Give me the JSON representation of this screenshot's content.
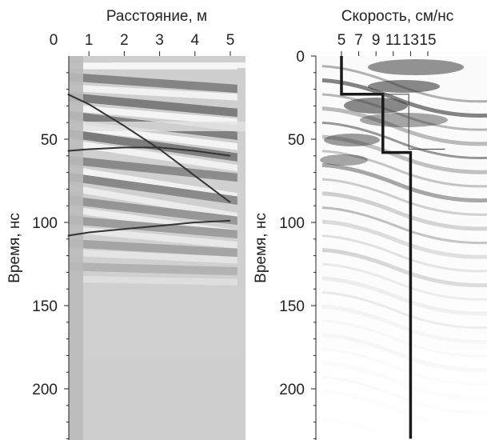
{
  "chart_data": [
    {
      "type": "line",
      "title": "Расстояние, м",
      "ylabel": "Время, нс",
      "x_ticks": [
        "0",
        "1",
        "2",
        "3",
        "4",
        "5"
      ],
      "y_ticks": [
        "50",
        "100",
        "150",
        "200"
      ],
      "xlim": [
        0,
        5
      ],
      "ylim": [
        0,
        230
      ],
      "x_axis_position": "top",
      "y_axis_inverted": true,
      "background": "radargram (grayscale seismic-style traces)",
      "series": [
        {
          "x": [
            0.4,
            1.0,
            2.0,
            3.0,
            4.0,
            5.0
          ],
          "y": [
            23,
            29,
            42,
            56,
            72,
            88
          ]
        },
        {
          "x": [
            0.4,
            1.0,
            2.0,
            3.0,
            4.0,
            5.0
          ],
          "y": [
            57,
            56,
            55,
            55,
            57,
            60
          ]
        },
        {
          "x": [
            0.4,
            1.0,
            2.0,
            3.0,
            4.0,
            5.0
          ],
          "y": [
            108,
            106,
            104,
            102,
            100,
            99
          ]
        }
      ],
      "colors": {
        "curves": "#333333",
        "traces_dark": "#777777",
        "traces_light": "#f4f4f4"
      }
    },
    {
      "type": "line",
      "title": "Скорость, см/нс",
      "ylabel": "Время, нс",
      "x_ticks": [
        "5",
        "7",
        "9",
        "11",
        "13",
        "15"
      ],
      "y_ticks": [
        "0",
        "50",
        "100",
        "150",
        "200"
      ],
      "xlim": [
        3.0,
        17.0
      ],
      "ylim": [
        0,
        230
      ],
      "x_axis_position": "top",
      "y_axis_inverted": true,
      "background": "velocity semblance (grayscale)",
      "series": [
        {
          "x": [
            5.0,
            5.0,
            9.8,
            9.8,
            13.0,
            13.0
          ],
          "y": [
            0,
            23,
            23,
            58,
            58,
            230
          ],
          "style": "thick"
        },
        {
          "x": [
            9.8,
            9.8,
            12.8,
            12.8,
            17.0
          ],
          "y": [
            23,
            23,
            23,
            56,
            56
          ],
          "style": "thin"
        }
      ],
      "colors": {
        "thick": "#1a1a1a",
        "thin": "#555555"
      }
    }
  ]
}
